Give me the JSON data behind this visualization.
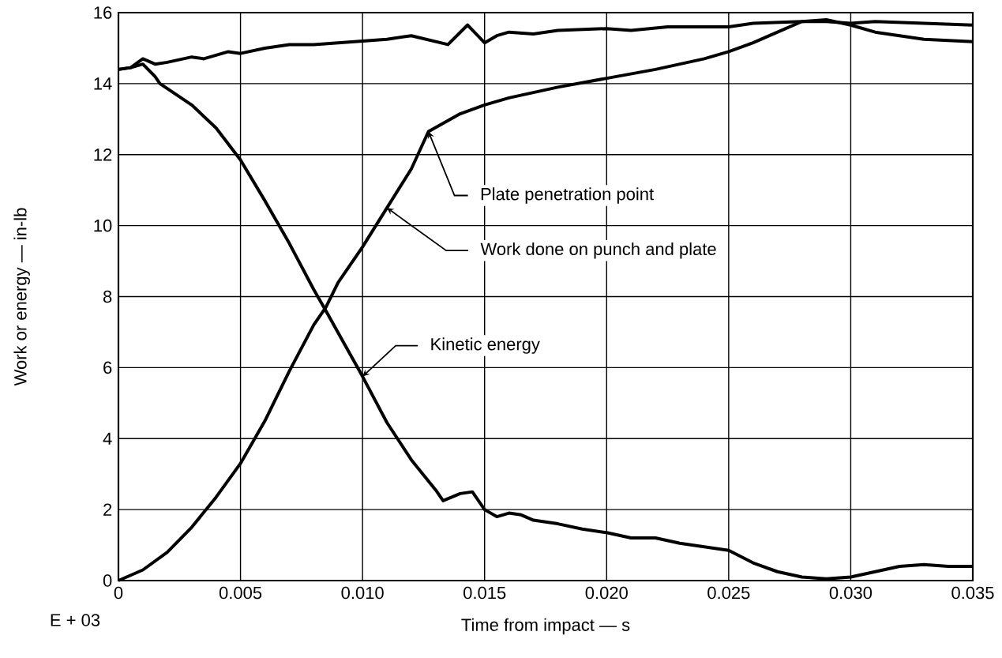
{
  "chart_data": {
    "type": "line",
    "xlabel": "Time from impact — s",
    "ylabel": "Work or energy — in-lb",
    "xlim": [
      0,
      0.035
    ],
    "ylim": [
      0,
      16
    ],
    "xticks": [
      0,
      0.005,
      {
        "value": 0.01,
        "label": "0.010"
      },
      0.015,
      {
        "value": 0.02,
        "label": "0.020"
      },
      0.025,
      {
        "value": 0.03,
        "label": "0.030"
      },
      0.035
    ],
    "yticks": [
      0,
      2,
      4,
      6,
      8,
      10,
      12,
      14,
      16
    ],
    "grid": true,
    "marker": "none",
    "line_style": "solid",
    "series": [
      {
        "color": "#000000",
        "x": [
          0,
          0.0005,
          0.001,
          0.0015,
          0.002,
          0.003,
          0.0035,
          0.0045,
          0.005,
          0.006,
          0.007,
          0.008,
          0.01,
          0.011,
          0.012,
          0.0135,
          0.0143,
          0.015,
          0.0155,
          0.016,
          0.017,
          0.018,
          0.02,
          0.021,
          0.0225,
          0.025,
          0.026,
          0.028,
          0.029,
          0.03,
          0.031,
          0.033,
          0.035
        ],
        "values": [
          14.4,
          14.45,
          14.7,
          14.55,
          14.6,
          14.75,
          14.7,
          14.9,
          14.85,
          15.0,
          15.1,
          15.1,
          15.2,
          15.25,
          15.35,
          15.1,
          15.65,
          15.15,
          15.35,
          15.45,
          15.4,
          15.5,
          15.55,
          15.5,
          15.6,
          15.6,
          15.7,
          15.75,
          15.75,
          15.7,
          15.75,
          15.7,
          15.65
        ]
      },
      {
        "color": "#000000",
        "x": [
          0,
          0.001,
          0.002,
          0.003,
          0.004,
          0.005,
          0.006,
          0.007,
          0.008,
          0.0085,
          0.009,
          0.01,
          0.011,
          0.012,
          0.0127,
          0.014,
          0.015,
          0.016,
          0.018,
          0.02,
          0.022,
          0.024,
          0.025,
          0.026,
          0.027,
          0.028,
          0.029,
          0.03,
          0.031,
          0.032,
          0.033,
          0.035
        ],
        "values": [
          0,
          0.3,
          0.8,
          1.5,
          2.35,
          3.3,
          4.5,
          5.9,
          7.2,
          7.7,
          8.4,
          9.4,
          10.5,
          11.6,
          12.65,
          13.15,
          13.4,
          13.6,
          13.9,
          14.15,
          14.4,
          14.7,
          14.9,
          15.15,
          15.45,
          15.75,
          15.8,
          15.65,
          15.45,
          15.35,
          15.25,
          15.18
        ]
      },
      {
        "color": "#000000",
        "x": [
          0,
          0.0005,
          0.001,
          0.0015,
          0.0017,
          0.003,
          0.004,
          0.005,
          0.006,
          0.007,
          0.008,
          0.0085,
          0.009,
          0.01,
          0.011,
          0.012,
          0.013,
          0.0133,
          0.014,
          0.0145,
          0.015,
          0.0155,
          0.016,
          0.0165,
          0.017,
          0.018,
          0.019,
          0.02,
          0.021,
          0.022,
          0.023,
          0.024,
          0.025,
          0.026,
          0.027,
          0.028,
          0.029,
          0.03,
          0.031,
          0.032,
          0.033,
          0.034,
          0.035
        ],
        "values": [
          14.4,
          14.45,
          14.55,
          14.2,
          14.0,
          13.4,
          12.75,
          11.85,
          10.7,
          9.5,
          8.2,
          7.6,
          6.98,
          5.75,
          4.45,
          3.4,
          2.55,
          2.25,
          2.45,
          2.5,
          2.0,
          1.8,
          1.9,
          1.85,
          1.7,
          1.6,
          1.45,
          1.35,
          1.2,
          1.2,
          1.05,
          0.95,
          0.85,
          0.5,
          0.25,
          0.1,
          0.05,
          0.1,
          0.25,
          0.4,
          0.45,
          0.4,
          0.4
        ]
      }
    ],
    "annotations": [
      {
        "text": "Plate penetration point",
        "x": 0.0127,
        "y": 12.65
      },
      {
        "text": "Work done on punch and plate",
        "x": 0.011,
        "y": 10.5
      },
      {
        "text": "Kinetic energy",
        "x": 0.01,
        "y": 5.75
      },
      "E + 03"
    ]
  }
}
